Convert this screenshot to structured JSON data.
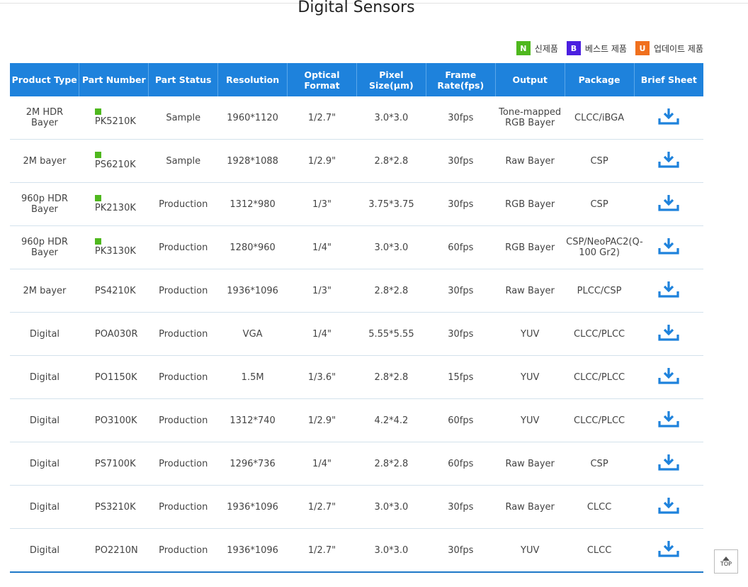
{
  "header": {
    "title": "Digital Sensors"
  },
  "legend": [
    {
      "badge": "N",
      "label": "신제품",
      "color": "#4fb81e"
    },
    {
      "badge": "B",
      "label": "베스트 제품",
      "color": "#4b1fe0"
    },
    {
      "badge": "U",
      "label": "업데이트 제품",
      "color": "#f0701e"
    }
  ],
  "table": {
    "columns": [
      "Product Type",
      "Part Number",
      "Part Status",
      "Resolution",
      "Optical Format",
      "Pixel Size(μm)",
      "Frame Rate(fps)",
      "Output",
      "Package",
      "Brief Sheet"
    ],
    "rows": [
      {
        "new": true,
        "cells": [
          "2M HDR Bayer",
          "PK5210K",
          "Sample",
          "1960*1120",
          "1/2.7\"",
          "3.0*3.0",
          "30fps",
          "Tone-mapped RGB Bayer",
          "CLCC/iBGA"
        ]
      },
      {
        "new": true,
        "cells": [
          "2M bayer",
          "PS6210K",
          "Sample",
          "1928*1088",
          "1/2.9\"",
          "2.8*2.8",
          "30fps",
          "Raw Bayer",
          "CSP"
        ]
      },
      {
        "new": true,
        "cells": [
          "960p HDR Bayer",
          "PK2130K",
          "Production",
          "1312*980",
          "1/3\"",
          "3.75*3.75",
          "30fps",
          "RGB Bayer",
          "CSP"
        ]
      },
      {
        "new": true,
        "cells": [
          "960p HDR Bayer",
          "PK3130K",
          "Production",
          "1280*960",
          "1/4\"",
          "3.0*3.0",
          "60fps",
          "RGB Bayer",
          "CSP/NeoPAC2(Q-100 Gr2)"
        ]
      },
      {
        "new": false,
        "cells": [
          "2M bayer",
          "PS4210K",
          "Production",
          "1936*1096",
          "1/3\"",
          "2.8*2.8",
          "30fps",
          "Raw Bayer",
          "PLCC/CSP"
        ]
      },
      {
        "new": false,
        "cells": [
          "Digital",
          "POA030R",
          "Production",
          "VGA",
          "1/4\"",
          "5.55*5.55",
          "30fps",
          "YUV",
          "CLCC/PLCC"
        ]
      },
      {
        "new": false,
        "cells": [
          "Digital",
          "PO1150K",
          "Production",
          "1.5M",
          "1/3.6\"",
          "2.8*2.8",
          "15fps",
          "YUV",
          "CLCC/PLCC"
        ]
      },
      {
        "new": false,
        "cells": [
          "Digital",
          "PO3100K",
          "Production",
          "1312*740",
          "1/2.9\"",
          "4.2*4.2",
          "60fps",
          "YUV",
          "CLCC/PLCC"
        ]
      },
      {
        "new": false,
        "cells": [
          "Digital",
          "PS7100K",
          "Production",
          "1296*736",
          "1/4\"",
          "2.8*2.8",
          "60fps",
          "Raw Bayer",
          "CSP"
        ]
      },
      {
        "new": false,
        "cells": [
          "Digital",
          "PS3210K",
          "Production",
          "1936*1096",
          "1/2.7\"",
          "3.0*3.0",
          "30fps",
          "Raw Bayer",
          "CLCC"
        ]
      },
      {
        "new": false,
        "cells": [
          "Digital",
          "PO2210N",
          "Production",
          "1936*1096",
          "1/2.7\"",
          "3.0*3.0",
          "30fps",
          "YUV",
          "CLCC"
        ]
      }
    ]
  },
  "top_button": "TOP"
}
